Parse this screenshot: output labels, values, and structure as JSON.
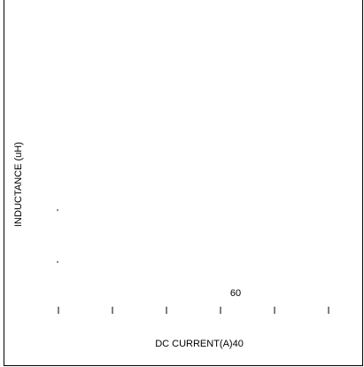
{
  "chart_data": {
    "type": "line",
    "title": "",
    "xlabel": "DC CURRENT(A)40",
    "ylabel": "INDUCTANCE (uH)",
    "x_tick_count": 6,
    "annotations": [
      "60"
    ],
    "points": [
      {
        "x": 0,
        "y": 2
      },
      {
        "x": 0,
        "y": 1
      }
    ],
    "ylim": [
      0,
      4
    ],
    "grid": false,
    "legend": "none"
  },
  "colors": {
    "background": "#ffffff",
    "ink": "#000000"
  }
}
